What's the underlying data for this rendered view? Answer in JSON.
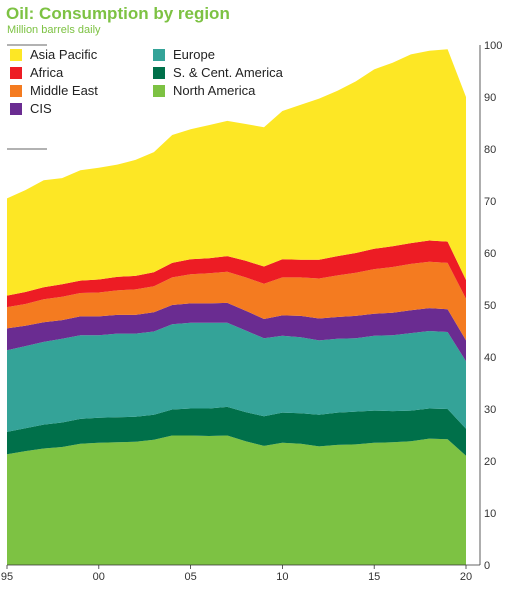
{
  "chart_data": {
    "type": "area",
    "stacked": true,
    "title": "Oil: Consumption by region",
    "subtitle": "Million barrels daily",
    "x": [
      1995,
      1996,
      1997,
      1998,
      1999,
      2000,
      2001,
      2002,
      2003,
      2004,
      2005,
      2006,
      2007,
      2008,
      2009,
      2010,
      2011,
      2012,
      2013,
      2014,
      2015,
      2016,
      2017,
      2018,
      2019,
      2020
    ],
    "x_tick_labels": [
      "95",
      "00",
      "05",
      "10",
      "15",
      "20"
    ],
    "ylim": [
      0,
      100
    ],
    "y_ticks": [
      0,
      10,
      20,
      30,
      40,
      50,
      60,
      70,
      80,
      90,
      100
    ],
    "y_axis_side": "right",
    "legend": "top-left",
    "series": [
      {
        "name": "North America",
        "color": "#7dc243",
        "values": [
          21.3,
          21.9,
          22.4,
          22.7,
          23.3,
          23.5,
          23.6,
          23.7,
          24.1,
          24.9,
          24.9,
          24.8,
          24.9,
          23.8,
          22.9,
          23.5,
          23.3,
          22.8,
          23.1,
          23.2,
          23.5,
          23.6,
          23.8,
          24.3,
          24.2,
          21.0
        ]
      },
      {
        "name": "S. & Cent. America",
        "color": "#00704a",
        "values": [
          4.3,
          4.4,
          4.6,
          4.7,
          4.8,
          4.8,
          4.8,
          4.8,
          4.8,
          5.0,
          5.2,
          5.3,
          5.5,
          5.6,
          5.7,
          5.8,
          5.9,
          6.1,
          6.2,
          6.3,
          6.2,
          6.0,
          5.9,
          5.8,
          5.8,
          5.2
        ]
      },
      {
        "name": "Europe",
        "color": "#34a398",
        "values": [
          15.7,
          15.8,
          15.9,
          16.1,
          16.1,
          15.9,
          16.1,
          16.0,
          16.0,
          16.4,
          16.5,
          16.5,
          16.2,
          15.7,
          15.0,
          14.8,
          14.6,
          14.3,
          14.2,
          14.1,
          14.4,
          14.6,
          14.9,
          14.9,
          14.8,
          13.0
        ]
      },
      {
        "name": "CIS",
        "color": "#6a2c91",
        "values": [
          4.2,
          3.9,
          3.8,
          3.6,
          3.6,
          3.6,
          3.6,
          3.6,
          3.7,
          3.7,
          3.7,
          3.7,
          3.8,
          3.8,
          3.7,
          3.9,
          4.1,
          4.2,
          4.2,
          4.3,
          4.2,
          4.3,
          4.4,
          4.4,
          4.4,
          4.0
        ]
      },
      {
        "name": "Middle East",
        "color": "#f47b20",
        "values": [
          4.1,
          4.2,
          4.4,
          4.5,
          4.5,
          4.6,
          4.7,
          4.9,
          5.0,
          5.3,
          5.6,
          5.8,
          6.0,
          6.4,
          6.8,
          7.3,
          7.4,
          7.7,
          8.0,
          8.3,
          8.6,
          8.8,
          8.9,
          8.9,
          8.9,
          8.0
        ]
      },
      {
        "name": "Africa",
        "color": "#ed1c24",
        "values": [
          2.2,
          2.3,
          2.3,
          2.4,
          2.4,
          2.5,
          2.6,
          2.6,
          2.7,
          2.8,
          2.9,
          2.9,
          3.0,
          3.2,
          3.3,
          3.5,
          3.4,
          3.6,
          3.7,
          3.8,
          3.9,
          4.0,
          4.0,
          4.1,
          4.1,
          3.6
        ]
      },
      {
        "name": "Asia Pacific",
        "color": "#fde725",
        "values": [
          18.7,
          19.6,
          20.6,
          20.4,
          21.2,
          21.5,
          21.6,
          22.3,
          23.1,
          24.6,
          25.0,
          25.6,
          26.0,
          26.3,
          26.8,
          28.5,
          29.8,
          31.0,
          31.8,
          33.0,
          34.5,
          35.3,
          36.3,
          36.5,
          37.0,
          35.2
        ]
      }
    ]
  }
}
